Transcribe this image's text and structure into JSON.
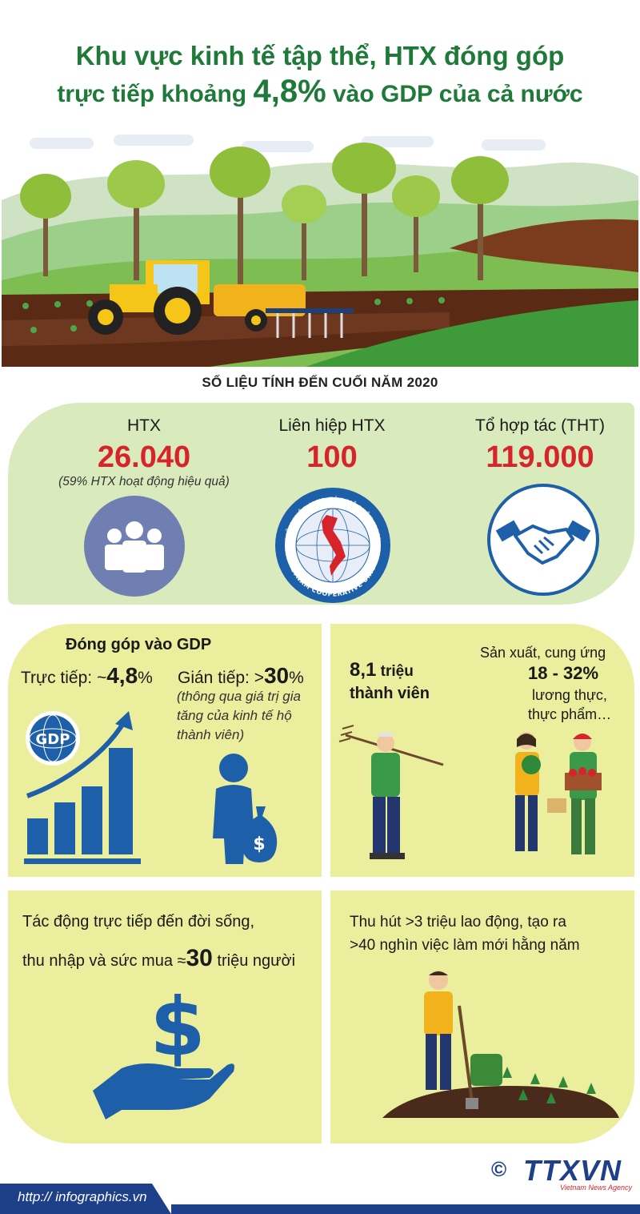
{
  "title": {
    "line1": "Khu vực kinh tế tập thể, HTX đóng góp",
    "line2_pre": "trực tiếp khoảng ",
    "line2_num": "4,8%",
    "line2_post": " vào GDP của cả nước"
  },
  "subtitle": "SỐ LIỆU TÍNH ĐẾN CUỐI NĂM 2020",
  "stats": [
    {
      "label": "HTX",
      "value": "26.040",
      "note": "(59% HTX hoạt động hiệu quả)",
      "icon": "people-icon"
    },
    {
      "label": "Liên hiệp HTX",
      "value": "100",
      "icon": "vietnam-cooperative-union-logo"
    },
    {
      "label": "Tổ hợp tác (THT)",
      "value": "119.000",
      "icon": "handshake-icon"
    }
  ],
  "logo_text": {
    "top": "LIÊN HIỆP HỢP TÁC XÃ VIỆT NAM",
    "bottom": "VIETNAM COOPERATIVE UNION"
  },
  "gdp": {
    "heading": "Đóng góp vào GDP",
    "direct_label": "Trực tiếp: ~",
    "direct_value": "4,8",
    "direct_unit": "%",
    "indirect_label": "Gián tiếp: >",
    "indirect_value": "30",
    "indirect_unit": "%",
    "indirect_note": "(thông qua giá trị gia tăng của kinh tế hộ thành viên)",
    "badge": "GDP"
  },
  "members": {
    "value": "8,1",
    "unit": " triệu",
    "line2": "thành viên",
    "supply_line1": "Sản xuất, cung ứng",
    "supply_value": "18 - 32%",
    "supply_line3": "lương thực,",
    "supply_line4": "thực phẩm…"
  },
  "life": {
    "line1": "Tác động trực tiếp đến đời sống,",
    "line2_pre": "thu nhập và sức mua ≈",
    "line2_num": "30",
    "line2_post": " triệu người"
  },
  "jobs": {
    "line1": "Thu hút >3 triệu lao động, tạo ra",
    "line2": ">40 nghìn việc làm mới hằng năm"
  },
  "footer": {
    "url": "http:// infographics.vn",
    "copyright": "©",
    "agency": "TTXVN",
    "agency_sub": "Vietnam News Agency"
  },
  "colors": {
    "title_green": "#1f7a3a",
    "value_red": "#d6242a",
    "stats_bg": "#d9ebbd",
    "panel_yellow": "#ebee9d",
    "icon_blue": "#1d5fa8",
    "footer_blue": "#1e3f8a"
  }
}
